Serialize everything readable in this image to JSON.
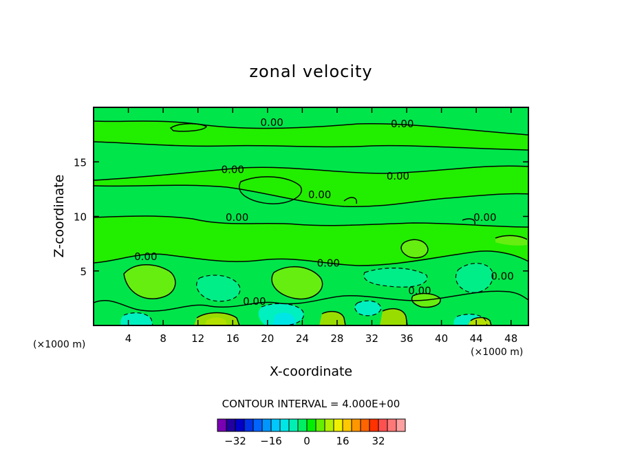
{
  "chart_data": {
    "type": "contour",
    "title": "zonal velocity",
    "xlabel": "X-coordinate",
    "ylabel": "Z-coordinate",
    "x_unit_label": "(×1000 m)",
    "x_unit_label_right": "(×1000 m)",
    "xlim": [
      0,
      50
    ],
    "ylim": [
      0,
      20
    ],
    "x_ticks": [
      4,
      8,
      12,
      16,
      20,
      24,
      28,
      32,
      36,
      40,
      44,
      48
    ],
    "y_ticks": [
      5,
      10,
      15
    ],
    "x_tick_labels": [
      "4",
      "8",
      "12",
      "16",
      "20",
      "24",
      "28",
      "32",
      "36",
      "40",
      "44",
      "48"
    ],
    "y_tick_labels": [
      "5",
      "10",
      "15"
    ],
    "contour_interval_text": "CONTOUR INTERVAL = 4.000E+00",
    "contour_labels": [
      {
        "text": "0.00",
        "x": 20.5,
        "y": 18.6
      },
      {
        "text": "0.00",
        "x": 35.5,
        "y": 18.5
      },
      {
        "text": "0.00",
        "x": 16.0,
        "y": 14.3
      },
      {
        "text": "0.00",
        "x": 35.0,
        "y": 13.7
      },
      {
        "text": "0.00",
        "x": 26.0,
        "y": 12.0
      },
      {
        "text": "0.00",
        "x": 16.5,
        "y": 9.9
      },
      {
        "text": "0.00",
        "x": 45.0,
        "y": 9.9
      },
      {
        "text": "0.00",
        "x": 6.0,
        "y": 6.3
      },
      {
        "text": "0.00",
        "x": 27.0,
        "y": 5.7
      },
      {
        "text": "0.00",
        "x": 47.0,
        "y": 4.5
      },
      {
        "text": "0.00",
        "x": 37.5,
        "y": 3.2
      },
      {
        "text": "0.00",
        "x": 18.5,
        "y": 2.2
      }
    ],
    "colorbar": {
      "colors": [
        "#7a00b4",
        "#2200a0",
        "#0000c8",
        "#0032e6",
        "#0064ff",
        "#0096ff",
        "#00c8ff",
        "#00e6e6",
        "#00f0b4",
        "#00f064",
        "#00f000",
        "#64f000",
        "#b4f000",
        "#f0f000",
        "#ffc800",
        "#ff9600",
        "#ff6400",
        "#ff3200",
        "#ff5050",
        "#ff7878",
        "#ffa0a0"
      ],
      "tick_values": [
        -32,
        -16,
        0,
        16,
        32
      ],
      "tick_labels": [
        "−32",
        "−16",
        "0",
        "16",
        "32"
      ]
    },
    "shading_colors": {
      "background": "#22ee00",
      "neutral": "#00e64a",
      "positive_light": "#66ee11",
      "positive_mid": "#99dd00",
      "positive_strong": "#b4e000",
      "negative_light": "#00ee88",
      "negative_mid": "#00f0c0",
      "negative_strong": "#00e6e6"
    }
  }
}
